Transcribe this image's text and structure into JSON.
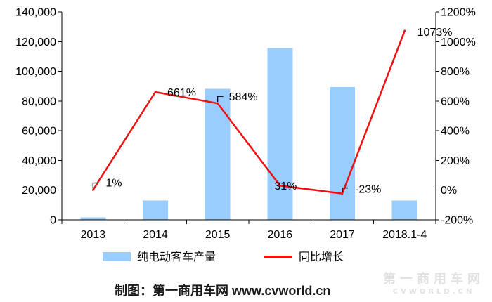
{
  "chart_data": {
    "type": "bar",
    "categories": [
      "2013",
      "2014",
      "2015",
      "2016",
      "2017",
      "2018.1-4"
    ],
    "series": [
      {
        "name": "纯电动客车产量",
        "type": "bar",
        "axis": "left",
        "color": "#99ccff",
        "values": [
          1700,
          12900,
          88200,
          115700,
          89500,
          12900
        ]
      },
      {
        "name": "同比增长",
        "type": "line",
        "axis": "right",
        "color": "#f01010",
        "values": [
          1,
          661,
          584,
          31,
          -23,
          1073
        ],
        "data_labels": [
          "1%",
          "661%",
          "584%",
          "31%",
          "-23%",
          "1073%"
        ]
      }
    ],
    "y_left": {
      "range": [
        0,
        140000
      ],
      "tick_values": [
        0,
        20000,
        40000,
        60000,
        80000,
        100000,
        120000,
        140000
      ],
      "tick_labels": [
        "0",
        "20,000",
        "40,000",
        "60,000",
        "80,000",
        "100,000",
        "120,000",
        "140,000"
      ]
    },
    "y_right": {
      "range": [
        -200,
        1200
      ],
      "tick_values": [
        -200,
        0,
        200,
        400,
        600,
        800,
        1000,
        1200
      ],
      "tick_labels": [
        "-200%",
        "0%",
        "200%",
        "400%",
        "600%",
        "800%",
        "1000%",
        "1200%"
      ]
    },
    "grid": false,
    "legend": "bottom"
  },
  "footer": {
    "credit": "制图：第一商用车网 www.cvworld.cn"
  },
  "watermark": {
    "text": "第一商用车网",
    "sub": "CVWORLD.CN"
  }
}
